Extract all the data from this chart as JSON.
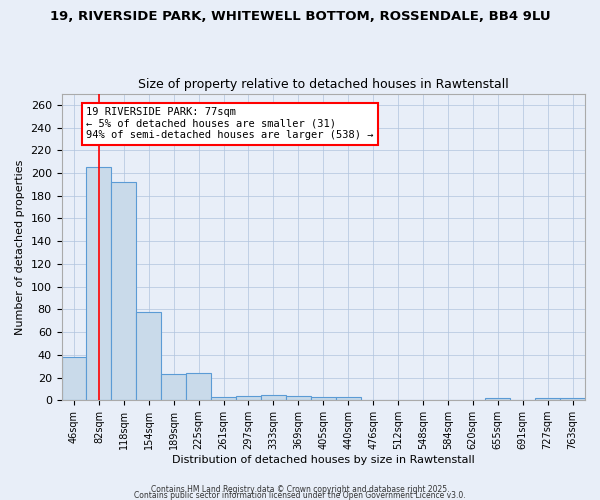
{
  "title_line1": "19, RIVERSIDE PARK, WHITEWELL BOTTOM, ROSSENDALE, BB4 9LU",
  "title_line2": "Size of property relative to detached houses in Rawtenstall",
  "xlabel": "Distribution of detached houses by size in Rawtenstall",
  "ylabel": "Number of detached properties",
  "categories": [
    "46sqm",
    "82sqm",
    "118sqm",
    "154sqm",
    "189sqm",
    "225sqm",
    "261sqm",
    "297sqm",
    "333sqm",
    "369sqm",
    "405sqm",
    "440sqm",
    "476sqm",
    "512sqm",
    "548sqm",
    "584sqm",
    "620sqm",
    "655sqm",
    "691sqm",
    "727sqm",
    "763sqm"
  ],
  "values": [
    38,
    205,
    192,
    78,
    23,
    24,
    3,
    4,
    5,
    4,
    3,
    3,
    0,
    0,
    0,
    0,
    0,
    2,
    0,
    2,
    2
  ],
  "bar_color": "#c9daea",
  "bar_edge_color": "#5b9bd5",
  "red_line_x": 1,
  "annotation_text": "19 RIVERSIDE PARK: 77sqm\n← 5% of detached houses are smaller (31)\n94% of semi-detached houses are larger (538) →",
  "annotation_box_color": "white",
  "annotation_border_color": "red",
  "ylim": [
    0,
    270
  ],
  "yticks": [
    0,
    20,
    40,
    60,
    80,
    100,
    120,
    140,
    160,
    180,
    200,
    220,
    240,
    260
  ],
  "footer_line1": "Contains HM Land Registry data © Crown copyright and database right 2025.",
  "footer_line2": "Contains public sector information licensed under the Open Government Licence v3.0.",
  "bg_color": "#e8eef8"
}
